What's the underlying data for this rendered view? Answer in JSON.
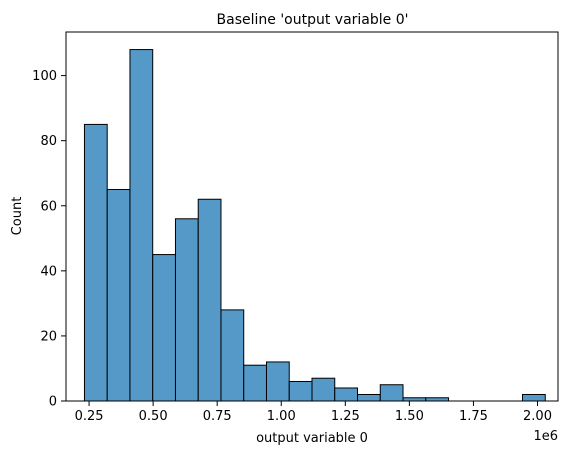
{
  "chart_data": {
    "type": "bar",
    "title": "Baseline 'output variable 0'",
    "xlabel": "output variable 0",
    "ylabel": "Count",
    "x_offset_label": "1e6",
    "bar_color": "#5499c7",
    "edge_color": "#000000",
    "xlim": [
      0.16,
      2.08
    ],
    "ylim": [
      0,
      113.4
    ],
    "grid": false,
    "legend": "none",
    "x_ticks": [
      0.25,
      0.5,
      0.75,
      1.0,
      1.25,
      1.5,
      1.75,
      2.0
    ],
    "x_tick_labels": [
      "0.25",
      "0.50",
      "0.75",
      "1.00",
      "1.25",
      "1.50",
      "1.75",
      "2.00"
    ],
    "y_ticks": [
      0,
      20,
      40,
      60,
      80,
      100
    ],
    "y_tick_labels": [
      "0",
      "20",
      "40",
      "60",
      "80",
      "100"
    ],
    "bin_width": 0.0888,
    "bins": [
      {
        "start": 0.232,
        "count": 85
      },
      {
        "start": 0.3208,
        "count": 65
      },
      {
        "start": 0.4096,
        "count": 108
      },
      {
        "start": 0.4984,
        "count": 45
      },
      {
        "start": 0.5872,
        "count": 56
      },
      {
        "start": 0.676,
        "count": 62
      },
      {
        "start": 0.7648,
        "count": 28
      },
      {
        "start": 0.8536,
        "count": 11
      },
      {
        "start": 0.9424,
        "count": 12
      },
      {
        "start": 1.0312,
        "count": 6
      },
      {
        "start": 1.12,
        "count": 7
      },
      {
        "start": 1.2088,
        "count": 4
      },
      {
        "start": 1.2976,
        "count": 2
      },
      {
        "start": 1.3864,
        "count": 5
      },
      {
        "start": 1.4752,
        "count": 1
      },
      {
        "start": 1.564,
        "count": 1
      },
      {
        "start": 1.6528,
        "count": 0
      },
      {
        "start": 1.7416,
        "count": 0
      },
      {
        "start": 1.8304,
        "count": 0
      },
      {
        "start": 1.9192,
        "count": 0
      },
      {
        "start": 1.9416,
        "count": 2
      }
    ]
  }
}
